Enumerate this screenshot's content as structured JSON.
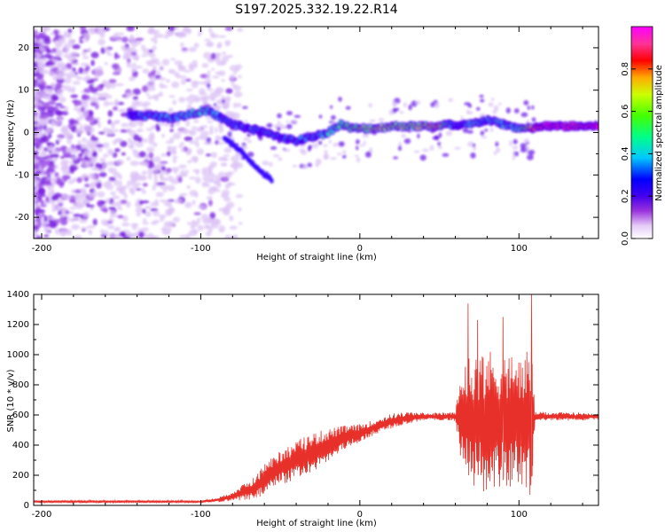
{
  "title": "S197.2025.332.19.22.R14",
  "chart_data": [
    {
      "type": "heatmap",
      "name": "spectrogram",
      "xlabel": "Height of straight line (km)",
      "ylabel": "Frequency (Hz)",
      "xlim": [
        -205,
        150
      ],
      "ylim": [
        -25,
        25
      ],
      "xticks": [
        -200,
        -100,
        0,
        100
      ],
      "yticks": [
        -20,
        -10,
        0,
        10,
        20
      ],
      "colorbar": {
        "label": "Normalized spectral amplitude",
        "range": [
          0,
          1
        ],
        "ticks": [
          "0.0",
          "0.2",
          "0.4",
          "0.6",
          "0.8"
        ],
        "colors": [
          "#ffffff",
          "#e8c8f8",
          "#9933dd",
          "#5500ee",
          "#0000ff",
          "#00c8ff",
          "#00ff66",
          "#bbff00",
          "#ffaa00",
          "#ff0000",
          "#ff33aa",
          "#ff00ff"
        ]
      },
      "ridge": {
        "x": [
          -145,
          -130,
          -120,
          -110,
          -100,
          -95,
          -90,
          -85,
          -80,
          -70,
          -60,
          -50,
          -40,
          -30,
          -20,
          -12,
          -5,
          0,
          10,
          20,
          30,
          40,
          50,
          55,
          60,
          70,
          80,
          90,
          100,
          108,
          115,
          150
        ],
        "y": [
          4,
          4,
          3.5,
          4,
          5,
          5,
          4,
          3,
          2,
          1,
          0,
          -1,
          -2,
          -1,
          0,
          2,
          1,
          1,
          1,
          1.5,
          1.5,
          1.5,
          1.5,
          2,
          1.5,
          2,
          3,
          2,
          1,
          1,
          1.5,
          1.5
        ],
        "amplitude": [
          0.3,
          0.35,
          0.35,
          0.4,
          0.45,
          0.4,
          0.35,
          0.3,
          0.3,
          0.3,
          0.3,
          0.3,
          0.3,
          0.35,
          0.4,
          0.5,
          0.55,
          0.6,
          0.65,
          0.65,
          0.65,
          0.7,
          0.75,
          0.4,
          0.3,
          0.4,
          0.35,
          0.35,
          0.4,
          0.8,
          0.95,
          0.95
        ]
      }
    },
    {
      "type": "line",
      "name": "snr",
      "xlabel": "Height of straight line (km)",
      "ylabel": "SNR (10 * v/v)",
      "xlim": [
        -205,
        150
      ],
      "ylim": [
        0,
        1400
      ],
      "xticks": [
        -200,
        -100,
        0,
        100
      ],
      "yticks": [
        0,
        200,
        400,
        600,
        800,
        1000,
        1200,
        1400
      ],
      "color": "#e8302a",
      "envelope": {
        "x": [
          -205,
          -100,
          -90,
          -80,
          -65,
          -60,
          -50,
          -40,
          -30,
          -20,
          -10,
          0,
          10,
          20,
          30,
          40,
          50,
          60,
          65,
          70,
          80,
          90,
          100,
          108,
          110,
          150
        ],
        "base": [
          25,
          25,
          35,
          60,
          120,
          180,
          250,
          300,
          350,
          400,
          450,
          480,
          520,
          560,
          580,
          590,
          590,
          590,
          580,
          560,
          560,
          560,
          560,
          560,
          590,
          590
        ],
        "spread": [
          8,
          8,
          15,
          30,
          80,
          100,
          120,
          130,
          130,
          110,
          80,
          60,
          50,
          50,
          40,
          25,
          25,
          30,
          400,
          450,
          480,
          450,
          430,
          500,
          30,
          25
        ]
      },
      "peaks": [
        {
          "x": 68,
          "y": 1340
        },
        {
          "x": 74,
          "y": 1230
        },
        {
          "x": 90,
          "y": 1250
        },
        {
          "x": 108,
          "y": 1400
        }
      ]
    }
  ]
}
